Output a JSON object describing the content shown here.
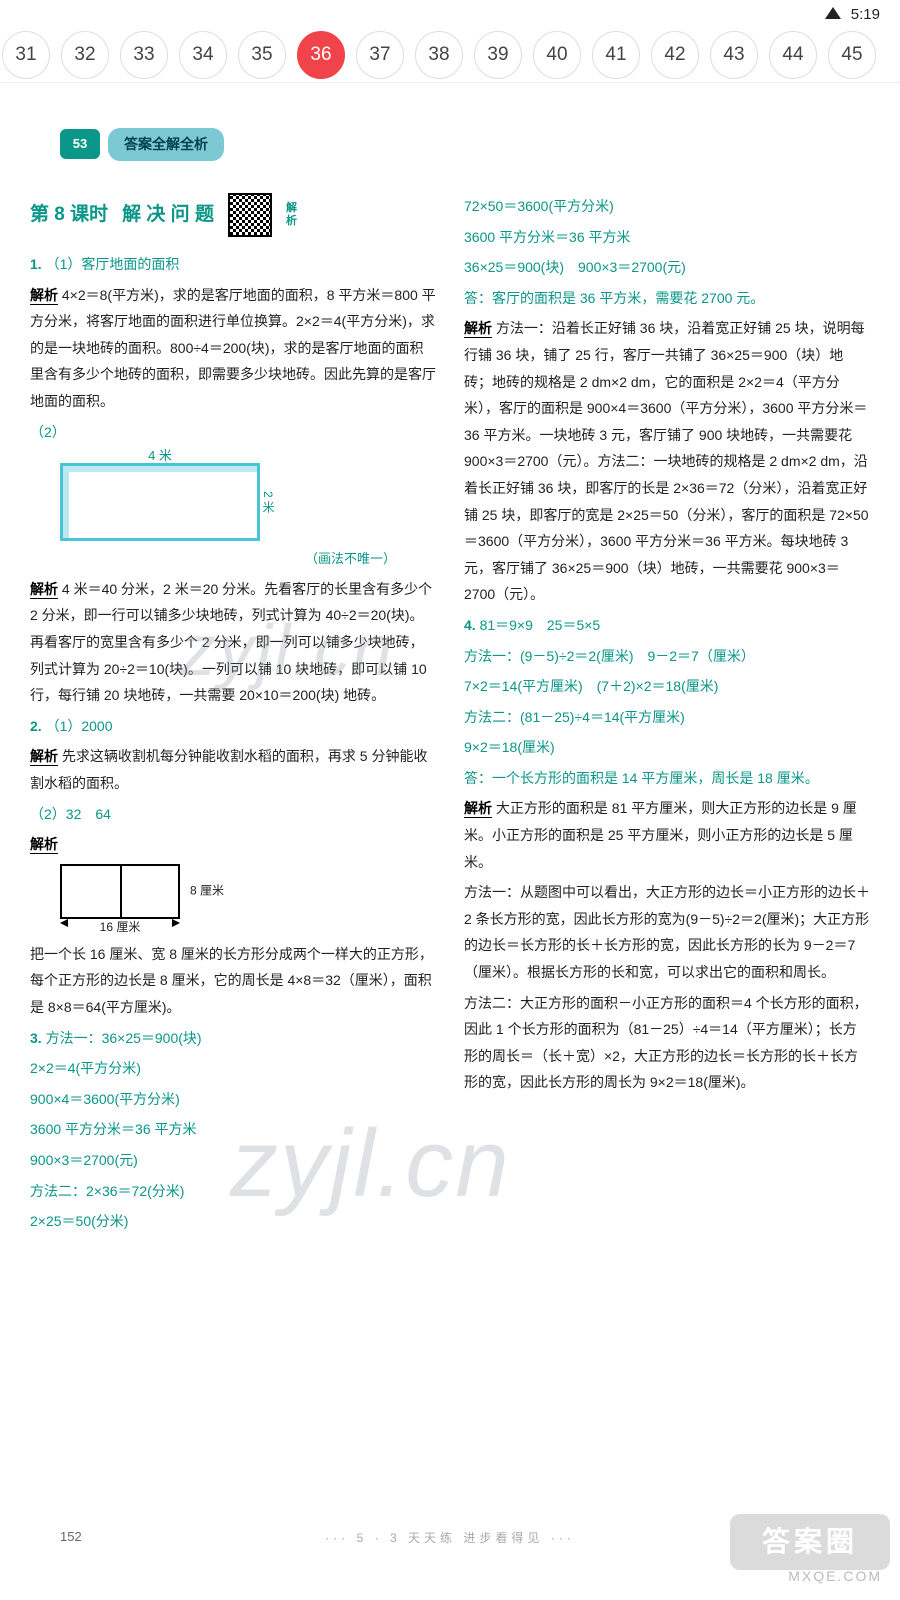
{
  "status": {
    "time": "5:19"
  },
  "tabs": {
    "items": [
      "31",
      "32",
      "33",
      "34",
      "35",
      "36",
      "37",
      "38",
      "39",
      "40",
      "41",
      "42",
      "43",
      "44",
      "45"
    ],
    "active_index": 5
  },
  "header": {
    "logo": "53",
    "pill": "答案全解全析"
  },
  "lesson": {
    "title_prefix": "第 8 课时",
    "title": "解 决 问 题",
    "qr_label_top": "解",
    "qr_label_bot": "析"
  },
  "left": {
    "q1_label": "1.",
    "q1_1": "（1）客厅地面的面积",
    "q1_explain": "解析",
    "q1_body": "4×2＝8(平方米)，求的是客厅地面的面积，8 平方米＝800 平方分米，将客厅地面的面积进行单位换算。2×2＝4(平方分米)，求的是一块地砖的面积。800÷4＝200(块)，求的是客厅地面的面积里含有多少个地砖的面积，即需要多少块地砖。因此先算的是客厅地面的面积。",
    "q1_2": "（2）",
    "diag_top": "4 米",
    "diag_right": "2 米",
    "diag_note": "（画法不唯一）",
    "q1_2_explain": "解析",
    "q1_2_body": "4 米＝40 分米，2 米＝20 分米。先看客厅的长里含有多少个 2 分米，即一行可以铺多少块地砖，列式计算为 40÷2＝20(块)。再看客厅的宽里含有多少个 2 分米，即一列可以铺多少块地砖，列式计算为 20÷2＝10(块)。一列可以铺 10 块地砖，即可以铺 10 行，每行铺 20 块地砖，一共需要 20×10＝200(块) 地砖。",
    "q2_label": "2.",
    "q2_1": "（1）2000",
    "q2_explain": "解析",
    "q2_body": "先求这辆收割机每分钟能收割水稻的面积，再求 5 分钟能收割水稻的面积。",
    "q2_2": "（2）32　64",
    "q2_2_explain": "解析",
    "small_w": "16 厘米",
    "small_h": "8 厘米",
    "q2_2_body": "把一个长 16 厘米、宽 8 厘米的长方形分成两个一样大的正方形，每个正方形的边长是 8 厘米，它的周长是 4×8＝32（厘米），面积是 8×8＝64(平方厘米)。",
    "q3_label": "3.",
    "q3_lines": [
      "方法一：36×25＝900(块)",
      "2×2＝4(平方分米)",
      "900×4＝3600(平方分米)",
      "3600 平方分米＝36 平方米",
      "900×3＝2700(元)",
      "方法二：2×36＝72(分米)",
      "2×25＝50(分米)"
    ]
  },
  "right": {
    "top_lines": [
      "72×50＝3600(平方分米)",
      "3600 平方分米＝36 平方米",
      "36×25＝900(块)　900×3＝2700(元)",
      "答：客厅的面积是 36 平方米，需要花 2700 元。"
    ],
    "explain1": "解析",
    "body1": "方法一：沿着长正好铺 36 块，沿着宽正好铺 25 块，说明每行铺 36 块，铺了 25 行，客厅一共铺了 36×25＝900（块）地砖；地砖的规格是 2 dm×2 dm，它的面积是 2×2＝4（平方分米），客厅的面积是 900×4＝3600（平方分米），3600 平方分米＝36 平方米。一块地砖 3 元，客厅铺了 900 块地砖，一共需要花 900×3＝2700（元）。方法二：一块地砖的规格是 2 dm×2 dm，沿着长正好铺 36 块，即客厅的长是 2×36＝72（分米），沿着宽正好铺 25 块，即客厅的宽是 2×25＝50（分米），客厅的面积是 72×50＝3600（平方分米），3600 平方分米＝36 平方米。每块地砖 3 元，客厅铺了 36×25＝900（块）地砖，一共需要花 900×3＝2700（元）。",
    "q4_label": "4.",
    "q4_head": "81＝9×9　25＝5×5",
    "q4_lines": [
      "方法一：(9－5)÷2＝2(厘米)　9－2＝7（厘米）",
      "7×2＝14(平方厘米)　(7＋2)×2＝18(厘米)",
      "方法二：(81－25)÷4＝14(平方厘米)",
      "9×2＝18(厘米)",
      "答：一个长方形的面积是 14 平方厘米，周长是 18 厘米。"
    ],
    "explain2": "解析",
    "body2": "大正方形的面积是 81 平方厘米，则大正方形的边长是 9 厘米。小正方形的面积是 25 平方厘米，则小正方形的边长是 5 厘米。",
    "body3": "方法一：从题图中可以看出，大正方形的边长＝小正方形的边长＋2 条长方形的宽，因此长方形的宽为(9－5)÷2＝2(厘米)；大正方形的边长＝长方形的长＋长方形的宽，因此长方形的长为 9－2＝7（厘米）。根据长方形的长和宽，可以求出它的面积和周长。",
    "body4": "方法二：大正方形的面积－小正方形的面积＝4 个长方形的面积，因此 1 个长方形的面积为（81－25）÷4＝14（平方厘米）；长方形的周长＝（长＋宽）×2，大正方形的边长＝长方形的长＋长方形的宽，因此长方形的周长为 9×2＝18(厘米)。"
  },
  "footer": {
    "pagenum": "152",
    "tagline": "··· 5 · 3 天天练 进步看得见 ···"
  },
  "overlay": {
    "wm": "zyjl.cn",
    "badge": "答案圈",
    "site": "MXQE.COM"
  }
}
